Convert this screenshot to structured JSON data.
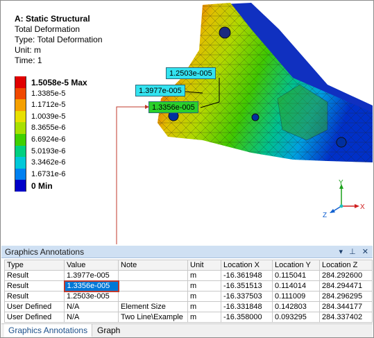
{
  "result_info": {
    "title": "A: Static Structural",
    "line1": "Total Deformation",
    "line2": "Type: Total Deformation",
    "line3": "Unit: m",
    "line4": "Time: 1"
  },
  "legend": {
    "items": [
      {
        "label": "1.5058e-5 Max",
        "color": "#e00000"
      },
      {
        "label": "1.3385e-5",
        "color": "#f04800"
      },
      {
        "label": "1.1712e-5",
        "color": "#f5a000"
      },
      {
        "label": "1.0039e-5",
        "color": "#e8e000"
      },
      {
        "label": "8.3655e-6",
        "color": "#a8e000"
      },
      {
        "label": "6.6924e-6",
        "color": "#40d000"
      },
      {
        "label": "5.0193e-6",
        "color": "#00d080"
      },
      {
        "label": "3.3462e-6",
        "color": "#00c8d8"
      },
      {
        "label": "1.6731e-6",
        "color": "#0080f0"
      },
      {
        "label": "0 Min",
        "color": "#0000c8"
      }
    ]
  },
  "probes": {
    "p1": "1.2503e-005",
    "p2": "1.3977e-005",
    "p3": "1.3356e-005"
  },
  "triad": {
    "x": "X",
    "y": "Y",
    "z": "Z"
  },
  "panel": {
    "title": "Graphics Annotations",
    "controls": {
      "dropdown": "▾",
      "pin": "⊥",
      "close": "✕"
    }
  },
  "table": {
    "headers": [
      "Type",
      "Value",
      "Note",
      "Unit",
      "Location X",
      "Location Y",
      "Location Z"
    ],
    "rows": [
      [
        "Result",
        "1.3977e-005",
        "",
        "m",
        "-16.361948",
        "0.115041",
        "284.292600"
      ],
      [
        "Result",
        "1.3356e-005",
        "",
        "m",
        "-16.351513",
        "0.114014",
        "284.294471"
      ],
      [
        "Result",
        "1.2503e-005",
        "",
        "m",
        "-16.337503",
        "0.111009",
        "284.296295"
      ],
      [
        "User Defined",
        "N/A",
        "Element Size",
        "m",
        "-16.331848",
        "0.142803",
        "284.344177"
      ],
      [
        "User Defined",
        "N/A",
        "Two Line\\Example",
        "m",
        "-16.358000",
        "0.093295",
        "284.337402"
      ]
    ]
  },
  "tabs": [
    "Graphics Annotations",
    "Graph"
  ]
}
